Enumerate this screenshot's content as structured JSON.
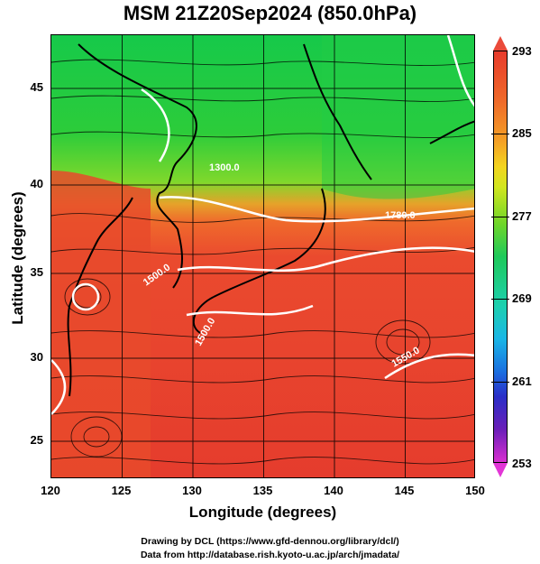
{
  "title": "MSM 21Z20Sep2024 (850.0hPa)",
  "axes": {
    "xlabel": "Longitude (degrees)",
    "ylabel": "Latitude  (degrees)",
    "xticks": [
      "120",
      "125",
      "130",
      "135",
      "140",
      "145",
      "150"
    ],
    "yticks": [
      "45",
      "40",
      "35",
      "30",
      "25"
    ],
    "xlim": [
      120,
      150
    ],
    "ylim": [
      22.4,
      47.6
    ]
  },
  "colorbar": {
    "ticks": [
      "293",
      "285",
      "277",
      "269",
      "261",
      "253"
    ],
    "range": [
      253,
      293
    ]
  },
  "contours": {
    "labels": [
      "1780.0",
      "1500.0",
      "1500.0",
      "1550.0",
      "1300.0"
    ]
  },
  "credits": {
    "line1": "Drawing by DCL (https://www.gfd-dennou.org/library/dcl/)",
    "line2": "Data from http://database.rish.kyoto-u.ac.jp/arch/jmadata/"
  },
  "colors": {
    "warm": "#e8412e",
    "cool": "#18c94e",
    "contour": "#ffffff",
    "coast": "#000000"
  }
}
